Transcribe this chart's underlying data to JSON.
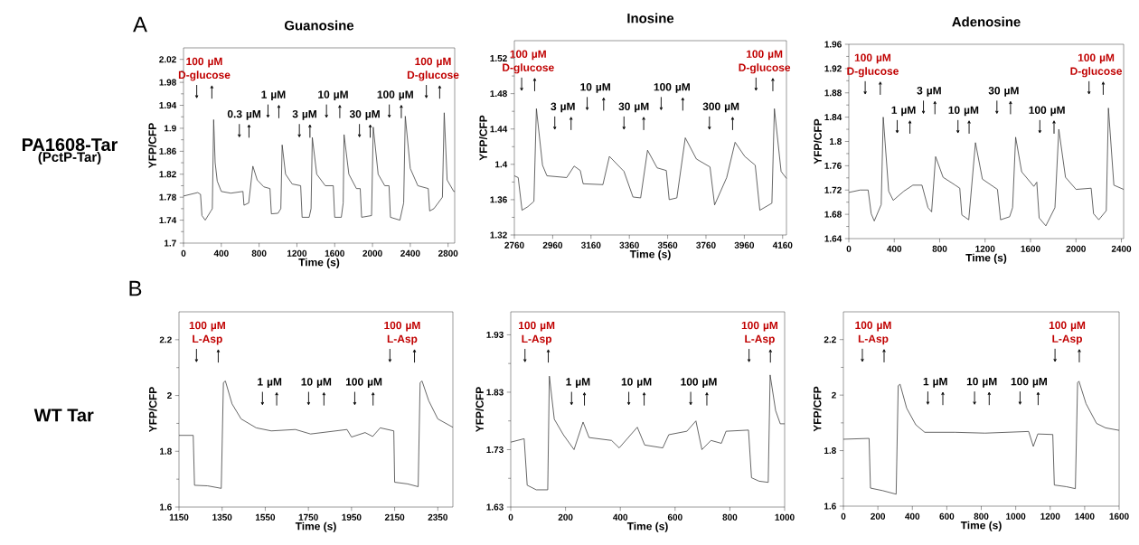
{
  "chart_data": [
    {
      "type": "line",
      "title": "Guanosine",
      "xlabel": "Time (s)",
      "ylabel": "YFP/CFP",
      "color": "#404040",
      "xlim": [
        0,
        2870
      ],
      "ylim": [
        1.7,
        2.04
      ],
      "xticks": [
        0,
        400,
        800,
        1200,
        1600,
        2000,
        2400,
        2800
      ],
      "yticks": [
        1.7,
        1.74,
        1.78,
        1.82,
        1.86,
        1.9,
        1.94,
        1.98,
        2.02
      ],
      "x": [
        0,
        150,
        180,
        195,
        230,
        290,
        305,
        319,
        335,
        357,
        400,
        500,
        629,
        640,
        690,
        734,
        780,
        850,
        915,
        930,
        1000,
        1030,
        1044,
        1080,
        1150,
        1240,
        1255,
        1330,
        1350,
        1363,
        1410,
        1500,
        1585,
        1600,
        1670,
        1690,
        1699,
        1750,
        1830,
        1870,
        1885,
        1990,
        2008,
        2060,
        2130,
        2175,
        2190,
        2290,
        2330,
        2347,
        2400,
        2480,
        2590,
        2605,
        2650,
        2740,
        2759,
        2790,
        2860,
        2870
      ],
      "values": [
        1.782,
        1.788,
        1.785,
        1.748,
        1.74,
        1.756,
        1.76,
        1.915,
        1.84,
        1.808,
        1.79,
        1.787,
        1.79,
        1.766,
        1.77,
        1.834,
        1.81,
        1.798,
        1.795,
        1.751,
        1.752,
        1.76,
        1.871,
        1.82,
        1.803,
        1.8,
        1.745,
        1.745,
        1.76,
        1.884,
        1.82,
        1.8,
        1.8,
        1.745,
        1.745,
        1.77,
        1.889,
        1.82,
        1.795,
        1.795,
        1.745,
        1.748,
        1.902,
        1.82,
        1.8,
        1.8,
        1.745,
        1.74,
        1.77,
        1.921,
        1.83,
        1.8,
        1.795,
        1.756,
        1.76,
        1.78,
        1.927,
        1.81,
        1.79,
        1.79
      ],
      "annotations": [
        "A",
        "PA1608-Tar",
        "(PctP-Tar)",
        "100 µM D-glucose",
        "0.3 µM",
        "1 µM",
        "3 µM",
        "10 µM",
        "30 µM",
        "100 µM",
        "100 µM D-glucose"
      ]
    },
    {
      "type": "line",
      "title": "Inosine",
      "xlabel": "Time (s)",
      "ylabel": "YFP/CFP",
      "color": "#404040",
      "xlim": [
        2760,
        4180
      ],
      "ylim": [
        1.32,
        1.54
      ],
      "xticks": [
        2760,
        2960,
        3160,
        3360,
        3560,
        3760,
        3960,
        4160
      ],
      "yticks": [
        1.32,
        1.36,
        1.4,
        1.44,
        1.48,
        1.52
      ],
      "x": [
        2760,
        2780,
        2800,
        2830,
        2862,
        2875,
        2907,
        2930,
        3033,
        3072,
        3104,
        3119,
        3222,
        3256,
        3332,
        3379,
        3419,
        3455,
        3505,
        3553,
        3568,
        3608,
        3652,
        3710,
        3781,
        3805,
        3868,
        3912,
        3962,
        4017,
        4041,
        4104,
        4117,
        4152,
        4180
      ],
      "values": [
        1.387,
        1.385,
        1.348,
        1.352,
        1.358,
        1.463,
        1.399,
        1.387,
        1.385,
        1.398,
        1.393,
        1.378,
        1.377,
        1.409,
        1.392,
        1.363,
        1.362,
        1.416,
        1.396,
        1.393,
        1.36,
        1.362,
        1.43,
        1.406,
        1.397,
        1.354,
        1.385,
        1.425,
        1.409,
        1.399,
        1.348,
        1.356,
        1.463,
        1.392,
        1.384
      ],
      "annotations": [
        "100 µM D-glucose",
        "3 µM",
        "10 µM",
        "30 µM",
        "100 µM",
        "300 µM",
        "100 µM D-glucose"
      ]
    },
    {
      "type": "line",
      "title": "Adenosine",
      "xlabel": "Time (s)",
      "ylabel": "YFP/CFP",
      "color": "#404040",
      "xlim": [
        0,
        2420
      ],
      "ylim": [
        1.64,
        1.96
      ],
      "xticks": [
        0,
        400,
        800,
        1200,
        1600,
        2000,
        2400
      ],
      "yticks": [
        1.64,
        1.68,
        1.72,
        1.76,
        1.8,
        1.84,
        1.88,
        1.92,
        1.96
      ],
      "x": [
        0,
        100,
        170,
        197,
        224,
        285,
        303,
        351,
        391,
        484,
        564,
        644,
        697,
        729,
        764,
        830,
        937,
        977,
        995,
        1056,
        1115,
        1176,
        1309,
        1336,
        1416,
        1442,
        1469,
        1522,
        1629,
        1655,
        1676,
        1735,
        1815,
        1849,
        1908,
        2001,
        2134,
        2155,
        2201,
        2267,
        2286,
        2334,
        2420
      ],
      "values": [
        1.716,
        1.72,
        1.72,
        1.681,
        1.669,
        1.696,
        1.84,
        1.718,
        1.703,
        1.718,
        1.728,
        1.728,
        1.691,
        1.684,
        1.775,
        1.741,
        1.728,
        1.723,
        1.679,
        1.671,
        1.798,
        1.738,
        1.721,
        1.671,
        1.676,
        1.691,
        1.807,
        1.75,
        1.726,
        1.733,
        1.674,
        1.661,
        1.691,
        1.82,
        1.741,
        1.721,
        1.723,
        1.681,
        1.671,
        1.686,
        1.855,
        1.728,
        1.721
      ],
      "annotations": [
        "100 µM D-glucose",
        "1 µM",
        "3 µM",
        "10 µM",
        "30 µM",
        "100 µM",
        "100 µM D-glucose"
      ]
    },
    {
      "type": "line",
      "xlabel": "Time (s)",
      "ylabel": "YFP/CFP",
      "color": "#404040",
      "xlim": [
        1150,
        2420
      ],
      "ylim": [
        1.6,
        2.3
      ],
      "xticks": [
        1150,
        1350,
        1550,
        1750,
        1950,
        2150,
        2350
      ],
      "yticks": [
        1.6,
        1.8,
        2,
        2.2
      ],
      "x": [
        1150,
        1216,
        1222,
        1283,
        1346,
        1356,
        1365,
        1396,
        1438,
        1508,
        1578,
        1690,
        1760,
        1929,
        1950,
        2013,
        2048,
        2083,
        2146,
        2150,
        2210,
        2259,
        2268,
        2277,
        2308,
        2350,
        2420
      ],
      "values": [
        1.857,
        1.857,
        1.678,
        1.676,
        1.667,
        2.046,
        2.052,
        1.97,
        1.916,
        1.884,
        1.873,
        1.878,
        1.862,
        1.878,
        1.851,
        1.867,
        1.853,
        1.884,
        1.873,
        1.689,
        1.683,
        1.673,
        2.046,
        2.052,
        1.981,
        1.916,
        1.886
      ],
      "annotations": [
        "B",
        "WT Tar",
        "100 µM L-Asp",
        "1 µM",
        "10 µM",
        "100 µM",
        "100 µM L-Asp"
      ]
    },
    {
      "type": "line",
      "xlabel": "Time (s)",
      "ylabel": "YFP/CFP",
      "color": "#404040",
      "xlim": [
        0,
        1000
      ],
      "ylim": [
        1.63,
        1.97
      ],
      "xticks": [
        0,
        200,
        400,
        600,
        800,
        1000
      ],
      "yticks": [
        1.63,
        1.73,
        1.83,
        1.93
      ],
      "x": [
        0,
        49,
        60,
        93,
        135,
        141,
        159,
        192,
        231,
        264,
        286,
        368,
        396,
        462,
        489,
        555,
        577,
        643,
        676,
        698,
        731,
        769,
        786,
        868,
        879,
        907,
        940,
        947,
        967,
        984,
        1000
      ],
      "values": [
        1.743,
        1.749,
        1.668,
        1.66,
        1.66,
        1.858,
        1.783,
        1.756,
        1.73,
        1.778,
        1.751,
        1.746,
        1.733,
        1.769,
        1.738,
        1.733,
        1.756,
        1.762,
        1.78,
        1.73,
        1.746,
        1.741,
        1.762,
        1.764,
        1.681,
        1.675,
        1.673,
        1.86,
        1.798,
        1.775,
        1.775
      ],
      "annotations": [
        "100 µM L-Asp",
        "1 µM",
        "10 µM",
        "100 µM",
        "100 µM L-Asp"
      ]
    },
    {
      "type": "line",
      "xlabel": "Time (s)",
      "ylabel": "YFP/CFP",
      "color": "#404040",
      "xlim": [
        0,
        1600
      ],
      "ylim": [
        1.6,
        2.3
      ],
      "xticks": [
        0,
        200,
        400,
        600,
        800,
        1000,
        1200,
        1400,
        1600
      ],
      "yticks": [
        1.6,
        1.8,
        2,
        2.2
      ],
      "x": [
        0,
        149,
        157,
        227,
        306,
        318,
        329,
        367,
        420,
        472,
        647,
        822,
        1075,
        1102,
        1128,
        1215,
        1224,
        1294,
        1346,
        1359,
        1367,
        1408,
        1469,
        1521,
        1600
      ],
      "values": [
        1.841,
        1.844,
        1.665,
        1.656,
        1.643,
        2.034,
        2.039,
        1.953,
        1.893,
        1.866,
        1.866,
        1.863,
        1.869,
        1.815,
        1.86,
        1.858,
        1.676,
        1.67,
        1.663,
        2.045,
        2.05,
        1.969,
        1.898,
        1.882,
        1.873
      ],
      "annotations": [
        "100 µM L-Asp",
        "1 µM",
        "10 µM",
        "100 µM",
        "100 µM L-Asp"
      ]
    }
  ]
}
